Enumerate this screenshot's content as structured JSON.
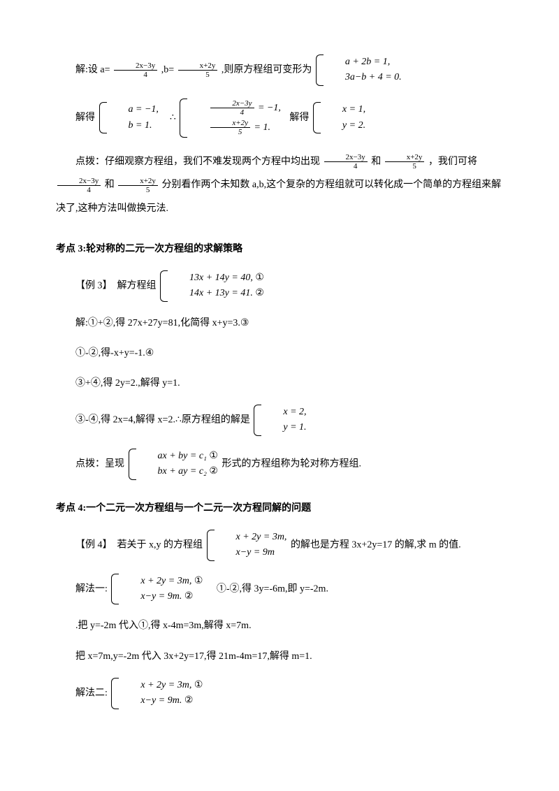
{
  "p1": {
    "prefix": "解:设 a=",
    "f1_num": "2x−3y",
    "f1_den": "4",
    "mid": ",b=",
    "f2_num": "x+2y",
    "f2_den": "5",
    "after": ",则原方程组可变形为",
    "sys_l1": "a + 2b = 1,",
    "sys_l2": "3a−b + 4 = 0."
  },
  "p2": {
    "prefix": "解得",
    "sys1_l1": "a = −1,",
    "sys1_l2": "b = 1.",
    "therefore": "∴",
    "sys2_l1_f_num": "2x−3y",
    "sys2_l1_f_den": "4",
    "sys2_l1_rest": " = −1,",
    "sys2_l2_f_num": "x+2y",
    "sys2_l2_f_den": "5",
    "sys2_l2_rest": " = 1.",
    "suffix": "解得",
    "sys3_l1": "x = 1,",
    "sys3_l2": "y = 2."
  },
  "p3": {
    "t1": "点拨：仔细观察方程组，我们不难发现两个方程中均出现",
    "f1_num": "2x−3y",
    "f1_den": "4",
    "t2": "和",
    "f2_num": "x+2y",
    "f2_den": "5",
    "t3": "，我们可将",
    "f3_num": "2x−3y",
    "f3_den": "4",
    "t4": "和",
    "f4_num": "x+2y",
    "f4_den": "5",
    "t5": "分别看作两个未知数 a,b,这个复杂的方程组就可以转化成一个简单的方程组来解决了,这种方法叫做换元法."
  },
  "h3": "考点 3:轮对称的二元一次方程组的求解策略",
  "ex3": {
    "label": "【例 3】　解方程组",
    "l1": "13x + 14y = 40, ",
    "c1": "①",
    "l2": "14x + 13y = 41. ",
    "c2": "②"
  },
  "s3_1": "解:①+②,得 27x+27y=81,化简得 x+y=3.③",
  "s3_2": "①-②,得-x+y=-1.④",
  "s3_3": "③+④,得 2y=2.,解得 y=1.",
  "s3_4": {
    "t": "③-④,得 2x=4,解得 x=2.∴原方程组的解是",
    "l1": "x = 2,",
    "l2": "y = 1."
  },
  "s3_5": {
    "t1": "点拨：呈现",
    "l1": "ax + by = c₁   ",
    "c1": "①",
    "l2": "bx + ay = c₂   ",
    "c2": "②",
    "t2": "形式的方程组称为轮对称方程组."
  },
  "h4": "考点 4:一个二元一次方程组与一个二元一次方程同解的问题",
  "ex4": {
    "label": "【例 4】　若关于 x,y 的方程组",
    "l1": "x + 2y = 3m,",
    "l2": "  x−y = 9m",
    "after": "的解也是方程 3x+2y=17 的解,求 m 的值."
  },
  "m1": {
    "t": "解法一:",
    "l1": "x + 2y = 3m, ",
    "c1": "①",
    "l2": "  x−y = 9m. ",
    "c2": "②",
    "after": "　①-②,得 3y=-6m,即 y=-2m."
  },
  "m1_2": ".把 y=-2m 代入①,得 x-4m=3m,解得 x=7m.",
  "m1_3": "把 x=7m,y=-2m 代入 3x+2y=17,得 21m-4m=17,解得 m=1.",
  "m2": {
    "t": "解法二:",
    "l1": "x + 2y = 3m, ",
    "c1": "①",
    "l2": "  x−y = 9m. ",
    "c2": "②"
  }
}
